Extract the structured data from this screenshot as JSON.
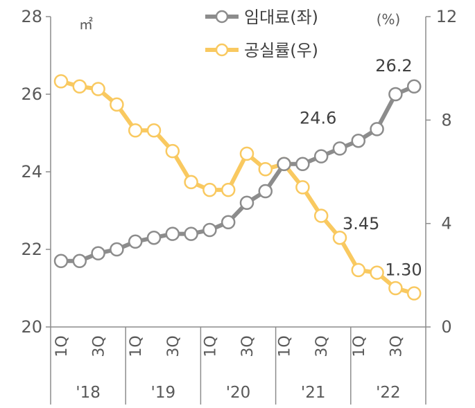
{
  "chart_data": {
    "type": "line",
    "left_axis": {
      "ylim": [
        20,
        28
      ],
      "ticks": [
        "20",
        "22",
        "24",
        "26",
        "28"
      ],
      "unit": "㎡"
    },
    "right_axis": {
      "ylim": [
        0,
        12
      ],
      "ticks": [
        "0",
        "4",
        "8",
        "12"
      ],
      "unit": "(%)"
    },
    "quarter_labels": [
      "1Q",
      "3Q"
    ],
    "years": [
      "'18",
      "'19",
      "'20",
      "'21",
      "'22"
    ],
    "legend_position": "top-center",
    "series": [
      {
        "name": "임대료(좌)",
        "axis": "left",
        "color": "#8c8c8c",
        "values": [
          21.7,
          21.7,
          21.9,
          22.0,
          22.2,
          22.3,
          22.4,
          22.4,
          22.5,
          22.7,
          23.2,
          23.5,
          24.2,
          24.2,
          24.4,
          24.6,
          24.8,
          25.1,
          26.0,
          26.2
        ]
      },
      {
        "name": "공실률(우)",
        "axis": "right",
        "color": "#f9c960",
        "values": [
          9.5,
          9.3,
          9.2,
          8.6,
          7.6,
          7.6,
          6.8,
          5.6,
          5.3,
          5.3,
          6.7,
          6.1,
          6.3,
          5.4,
          4.3,
          3.45,
          2.2,
          2.1,
          1.5,
          1.3
        ]
      }
    ],
    "data_labels": [
      {
        "series": 0,
        "index": 15,
        "text": "24.6"
      },
      {
        "series": 0,
        "index": 19,
        "text": "26.2"
      },
      {
        "series": 1,
        "index": 15,
        "text": "3.45"
      },
      {
        "series": 1,
        "index": 19,
        "text": "1.30"
      }
    ]
  }
}
